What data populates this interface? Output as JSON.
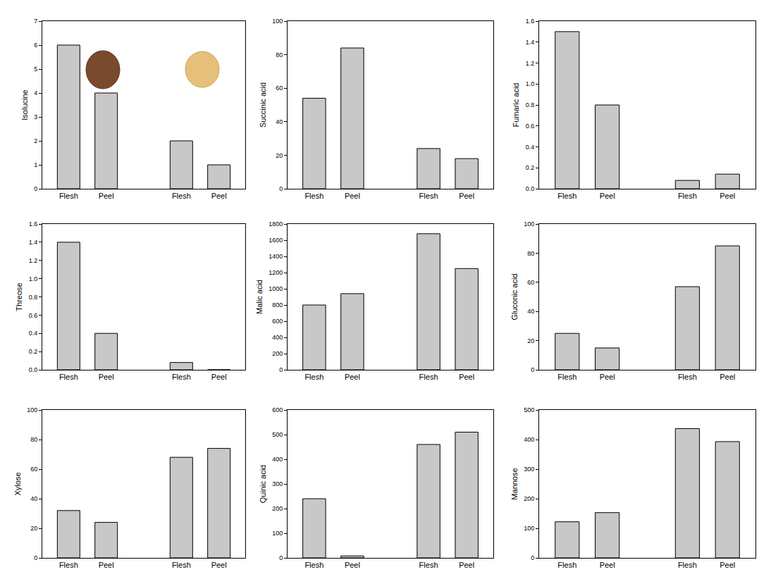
{
  "chart_data": [
    {
      "type": "bar",
      "y_label": "Isolucine",
      "categories": [
        "Flesh",
        "Peel",
        "Flesh",
        "Peel"
      ],
      "values": [
        6,
        4,
        2,
        1
      ],
      "color": "#c8c8c8",
      "ylim": [
        0,
        7
      ],
      "yticks": [
        0,
        1,
        2,
        3,
        4,
        5,
        6,
        7
      ]
    },
    {
      "type": "bar",
      "y_label": "Succinic acid",
      "categories": [
        "Flesh",
        "Peel",
        "Flesh",
        "Peel"
      ],
      "values": [
        54,
        84,
        24,
        18
      ],
      "color": "#c8c8c8",
      "ylim": [
        0,
        100
      ],
      "yticks": [
        0,
        20,
        40,
        60,
        80,
        100
      ]
    },
    {
      "type": "bar",
      "y_label": "Fumaric acid",
      "categories": [
        "Flesh",
        "Peel",
        "Flesh",
        "Peel"
      ],
      "values": [
        1.5,
        0.8,
        0.08,
        0.14
      ],
      "color": "#c8c8c8",
      "ylim": [
        0,
        1.6
      ],
      "yticks": [
        {
          "value": 0,
          "label": "0.0"
        },
        0.2,
        0.4,
        0.6,
        0.8,
        {
          "value": 1,
          "label": "1.0"
        },
        1.2,
        1.4,
        1.6
      ]
    },
    {
      "type": "bar",
      "y_label": "Threose",
      "categories": [
        "Flesh",
        "Peel",
        "Flesh",
        "Peel"
      ],
      "values": [
        1.4,
        0.4,
        0.08,
        0
      ],
      "color": "#c8c8c8",
      "ylim": [
        0,
        1.6
      ],
      "yticks": [
        {
          "value": 0,
          "label": "0.0"
        },
        0.2,
        0.4,
        0.6,
        0.8,
        {
          "value": 1,
          "label": "1.0"
        },
        1.2,
        1.4,
        1.6
      ]
    },
    {
      "type": "bar",
      "y_label": "Malic acid",
      "categories": [
        "Flesh",
        "Peel",
        "Flesh",
        "Peel"
      ],
      "values": [
        800,
        940,
        1680,
        1250
      ],
      "color": "#c8c8c8",
      "ylim": [
        0,
        1800
      ],
      "yticks": [
        0,
        200,
        400,
        600,
        800,
        1000,
        1200,
        1400,
        1600,
        1800
      ]
    },
    {
      "type": "bar",
      "y_label": "Gluconic acid",
      "categories": [
        "Flesh",
        "Peel",
        "Flesh",
        "Peel"
      ],
      "values": [
        25,
        15,
        57,
        85
      ],
      "color": "#c8c8c8",
      "ylim": [
        0,
        100
      ],
      "yticks": [
        0,
        20,
        40,
        60,
        80,
        100
      ]
    },
    {
      "type": "bar",
      "y_label": "Xylose",
      "categories": [
        "Flesh",
        "Peel",
        "Flesh",
        "Peel"
      ],
      "values": [
        32,
        24,
        68,
        74
      ],
      "color": "#c8c8c8",
      "ylim": [
        0,
        100
      ],
      "yticks": [
        0,
        20,
        40,
        60,
        80,
        100
      ]
    },
    {
      "type": "bar",
      "y_label": "Quinic acid",
      "categories": [
        "Flesh",
        "Peel",
        "Flesh",
        "Peel"
      ],
      "values": [
        240,
        8,
        460,
        510
      ],
      "color": "#c8c8c8",
      "ylim": [
        0,
        600
      ],
      "yticks": [
        0,
        100,
        200,
        300,
        400,
        500,
        600
      ]
    },
    {
      "type": "bar",
      "y_label": "Mannose",
      "categories": [
        "Flesh",
        "Peel",
        "Flesh",
        "Peel"
      ],
      "values": [
        122,
        153,
        437,
        393
      ],
      "color": "#c8c8c8",
      "ylim": [
        0,
        500
      ],
      "yticks": [
        0,
        100,
        200,
        300,
        400,
        500
      ]
    }
  ]
}
